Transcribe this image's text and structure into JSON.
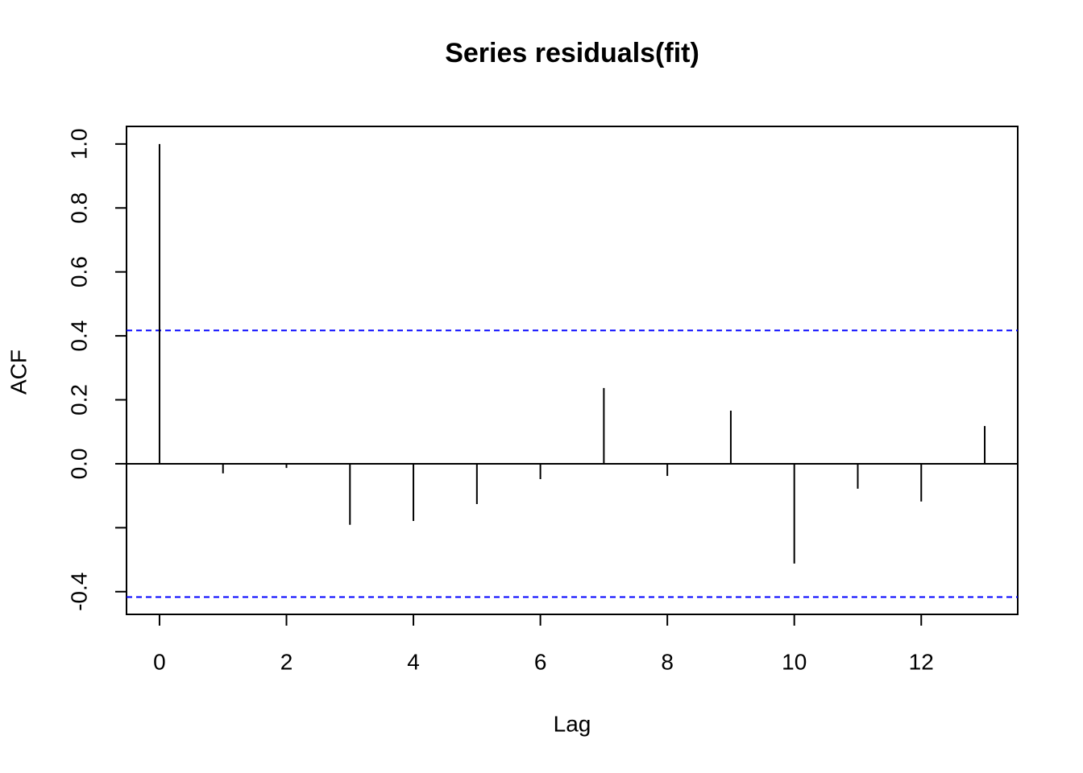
{
  "chart_data": {
    "type": "stem",
    "title": "Series  residuals(fit)",
    "xlabel": "Lag",
    "ylabel": "ACF",
    "x": [
      0,
      1,
      2,
      3,
      4,
      5,
      6,
      7,
      8,
      9,
      10,
      11,
      12,
      13
    ],
    "values": [
      1.0,
      -0.03,
      -0.013,
      -0.191,
      -0.179,
      -0.126,
      -0.048,
      0.237,
      -0.038,
      0.166,
      -0.312,
      -0.078,
      -0.118,
      0.118
    ],
    "color": "#000000",
    "confidence_band": [
      -0.417,
      0.417
    ],
    "band_color": "#0000ff",
    "xlim": [
      -0.52,
      13.52
    ],
    "ylim": [
      -0.471,
      1.055
    ],
    "xticks": [
      0,
      2,
      4,
      6,
      8,
      10,
      12
    ],
    "yticks": [
      -0.4,
      {
        "value": -0.2,
        "label": null
      },
      {
        "value": 0,
        "label": "0.0"
      },
      0.2,
      0.4,
      0.6,
      0.8,
      {
        "value": 1,
        "label": "1.0"
      }
    ],
    "grid": false
  }
}
